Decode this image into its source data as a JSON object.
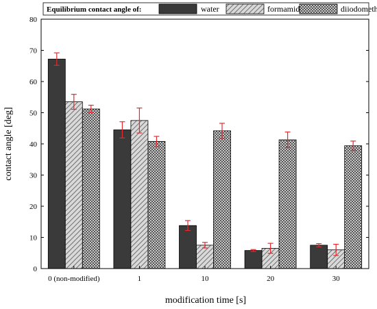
{
  "chart_data": {
    "type": "bar",
    "title": "",
    "xlabel": "modification time [s]",
    "ylabel": "contact angle [deg]",
    "ylim": [
      0,
      80
    ],
    "yticks": [
      0,
      10,
      20,
      30,
      40,
      50,
      60,
      70,
      80
    ],
    "categories": [
      "0 (non-modified)",
      "1",
      "10",
      "20",
      "30"
    ],
    "legend": {
      "title": "Equilibrium contact angle of:",
      "placement": "top"
    },
    "series": [
      {
        "name": "water",
        "pattern": "solid",
        "values": [
          67.2,
          44.5,
          13.8,
          5.8,
          7.5
        ],
        "errors": [
          2.0,
          2.6,
          1.6,
          0.3,
          0.5
        ]
      },
      {
        "name": "formamide",
        "pattern": "diagonal-hatch",
        "values": [
          53.5,
          47.5,
          7.5,
          6.5,
          6.0
        ],
        "errors": [
          2.4,
          4.0,
          0.9,
          1.6,
          1.8
        ]
      },
      {
        "name": "diiodomethane",
        "pattern": "crosshatch",
        "values": [
          51.2,
          40.8,
          44.2,
          41.3,
          39.4
        ],
        "errors": [
          1.2,
          1.6,
          2.4,
          2.5,
          1.5
        ]
      }
    ],
    "colors": {
      "water": "#3a3a3a",
      "hatch": "#8a8a8a",
      "error_bar": "#e8282d"
    },
    "grid": false
  }
}
